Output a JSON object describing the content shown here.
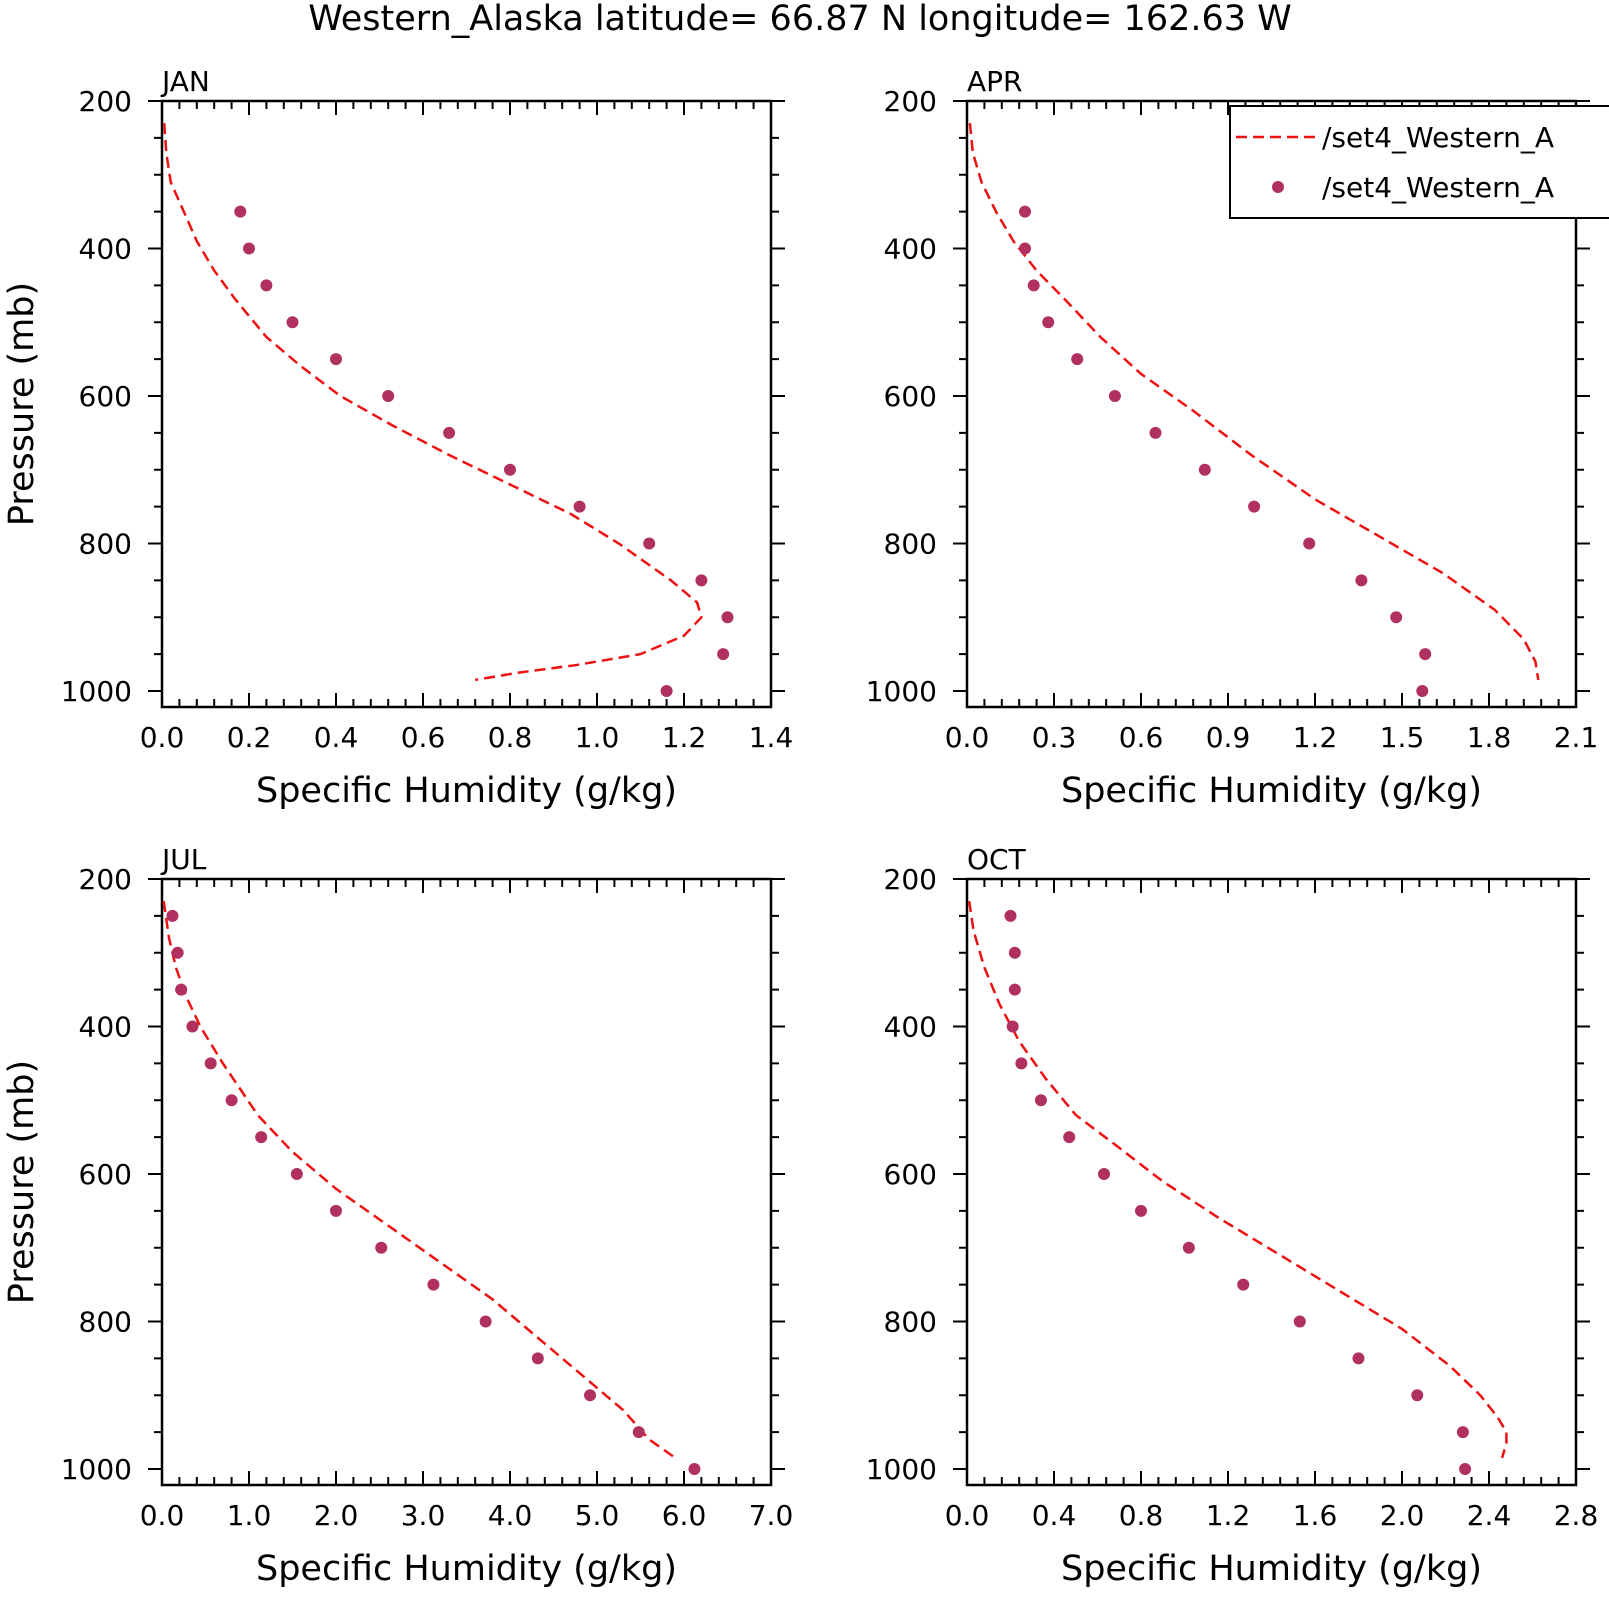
{
  "figure_title": "Western_Alaska  latitude= 66.87 N longitude= 162.63 W",
  "legend": {
    "line_label": "/set4_Western_A",
    "dot_label": "/set4_Western_A"
  },
  "colors": {
    "line": "#ee1111",
    "dots": "#b03060",
    "axes": "#000000"
  },
  "chart_data": [
    {
      "type": "line",
      "panel_label": "JAN",
      "xlabel": "Specific Humidity (g/kg)",
      "ylabel": "Pressure (mb)",
      "xlim": [
        0.0,
        1.4
      ],
      "ylim": [
        1000,
        200
      ],
      "xticks": [
        "0.0",
        "0.2",
        "0.4",
        "0.6",
        "0.8",
        "1.0",
        "1.2",
        "1.4"
      ],
      "yticks": [
        "200",
        "400",
        "600",
        "800",
        "1000"
      ],
      "y_reversed": true,
      "legend": false,
      "series": [
        {
          "name": "/set4_Western_A",
          "style": "dashed-line",
          "x": [
            0.005,
            0.01,
            0.02,
            0.05,
            0.08,
            0.12,
            0.17,
            0.24,
            0.32,
            0.41,
            0.53,
            0.66,
            0.8,
            0.94,
            1.05,
            1.17,
            1.23,
            1.24,
            1.2,
            1.1,
            0.95,
            0.82,
            0.72
          ],
          "y": [
            230,
            270,
            310,
            350,
            390,
            430,
            470,
            520,
            560,
            600,
            640,
            680,
            720,
            760,
            800,
            850,
            880,
            900,
            925,
            950,
            965,
            975,
            985
          ]
        },
        {
          "name": "/set4_Western_A",
          "style": "dots",
          "x": [
            0.18,
            0.2,
            0.24,
            0.3,
            0.4,
            0.52,
            0.66,
            0.8,
            0.96,
            1.12,
            1.24,
            1.3,
            1.29,
            1.16
          ],
          "y": [
            350,
            400,
            450,
            500,
            550,
            600,
            650,
            700,
            750,
            800,
            850,
            900,
            950,
            1000
          ]
        }
      ]
    },
    {
      "type": "line",
      "panel_label": "APR",
      "xlabel": "Specific Humidity (g/kg)",
      "ylabel": "",
      "xlim": [
        0.0,
        2.1
      ],
      "ylim": [
        1000,
        200
      ],
      "xticks": [
        "0.0",
        "0.3",
        "0.6",
        "0.9",
        "1.2",
        "1.5",
        "1.8",
        "2.1"
      ],
      "yticks": [
        "200",
        "400",
        "600",
        "800",
        "1000"
      ],
      "y_reversed": true,
      "legend": true,
      "legend_position": "top-right",
      "series": [
        {
          "name": "/set4_Western_A",
          "style": "dashed-line",
          "x": [
            0.01,
            0.02,
            0.05,
            0.1,
            0.16,
            0.24,
            0.34,
            0.46,
            0.6,
            0.78,
            0.98,
            1.2,
            1.42,
            1.64,
            1.82,
            1.92,
            1.96,
            1.97
          ],
          "y": [
            230,
            270,
            310,
            350,
            390,
            430,
            470,
            520,
            570,
            620,
            680,
            740,
            790,
            840,
            890,
            930,
            960,
            985
          ]
        },
        {
          "name": "/set4_Western_A",
          "style": "dots",
          "x": [
            0.2,
            0.2,
            0.23,
            0.28,
            0.38,
            0.51,
            0.65,
            0.82,
            0.99,
            1.18,
            1.36,
            1.48,
            1.58,
            1.57
          ],
          "y": [
            350,
            400,
            450,
            500,
            550,
            600,
            650,
            700,
            750,
            800,
            850,
            900,
            950,
            1000
          ]
        }
      ]
    },
    {
      "type": "line",
      "panel_label": "JUL",
      "xlabel": "Specific Humidity (g/kg)",
      "ylabel": "Pressure (mb)",
      "xlim": [
        0.0,
        7.0
      ],
      "ylim": [
        1000,
        200
      ],
      "xticks": [
        "0.0",
        "1.0",
        "2.0",
        "3.0",
        "4.0",
        "5.0",
        "6.0",
        "7.0"
      ],
      "yticks": [
        "200",
        "400",
        "600",
        "800",
        "1000"
      ],
      "y_reversed": true,
      "legend": false,
      "series": [
        {
          "name": "/set4_Western_A",
          "style": "dashed-line",
          "x": [
            0.02,
            0.08,
            0.16,
            0.28,
            0.44,
            0.7,
            1.1,
            1.5,
            2.0,
            2.6,
            3.2,
            3.8,
            4.3,
            4.8,
            5.3,
            5.6,
            5.9
          ],
          "y": [
            230,
            280,
            320,
            360,
            400,
            450,
            520,
            570,
            620,
            670,
            720,
            770,
            820,
            870,
            920,
            960,
            985
          ]
        },
        {
          "name": "/set4_Western_A",
          "style": "dots",
          "x": [
            0.12,
            0.18,
            0.22,
            0.35,
            0.56,
            0.8,
            1.14,
            1.55,
            2.0,
            2.52,
            3.12,
            3.72,
            4.32,
            4.92,
            5.48,
            6.12
          ],
          "y": [
            250,
            300,
            350,
            400,
            450,
            500,
            550,
            600,
            650,
            700,
            750,
            800,
            850,
            900,
            950,
            1000
          ]
        }
      ]
    },
    {
      "type": "line",
      "panel_label": "OCT",
      "xlabel": "Specific Humidity (g/kg)",
      "ylabel": "",
      "xlim": [
        0.0,
        2.8
      ],
      "ylim": [
        1000,
        200
      ],
      "xticks": [
        "0.0",
        "0.4",
        "0.8",
        "1.2",
        "1.6",
        "2.0",
        "2.4",
        "2.8"
      ],
      "yticks": [
        "200",
        "400",
        "600",
        "800",
        "1000"
      ],
      "y_reversed": true,
      "legend": false,
      "series": [
        {
          "name": "/set4_Western_A",
          "style": "dashed-line",
          "x": [
            0.01,
            0.03,
            0.08,
            0.15,
            0.24,
            0.36,
            0.5,
            0.68,
            0.9,
            1.16,
            1.44,
            1.72,
            2.0,
            2.22,
            2.36,
            2.44,
            2.48,
            2.48,
            2.46
          ],
          "y": [
            230,
            270,
            320,
            370,
            420,
            470,
            520,
            560,
            610,
            660,
            710,
            760,
            810,
            860,
            900,
            930,
            950,
            965,
            985
          ]
        },
        {
          "name": "/set4_Western_A",
          "style": "dots",
          "x": [
            0.2,
            0.22,
            0.22,
            0.21,
            0.25,
            0.34,
            0.47,
            0.63,
            0.8,
            1.02,
            1.27,
            1.53,
            1.8,
            2.07,
            2.28,
            2.29
          ],
          "y": [
            250,
            300,
            350,
            400,
            450,
            500,
            550,
            600,
            650,
            700,
            750,
            800,
            850,
            900,
            950,
            1000
          ]
        }
      ]
    }
  ]
}
